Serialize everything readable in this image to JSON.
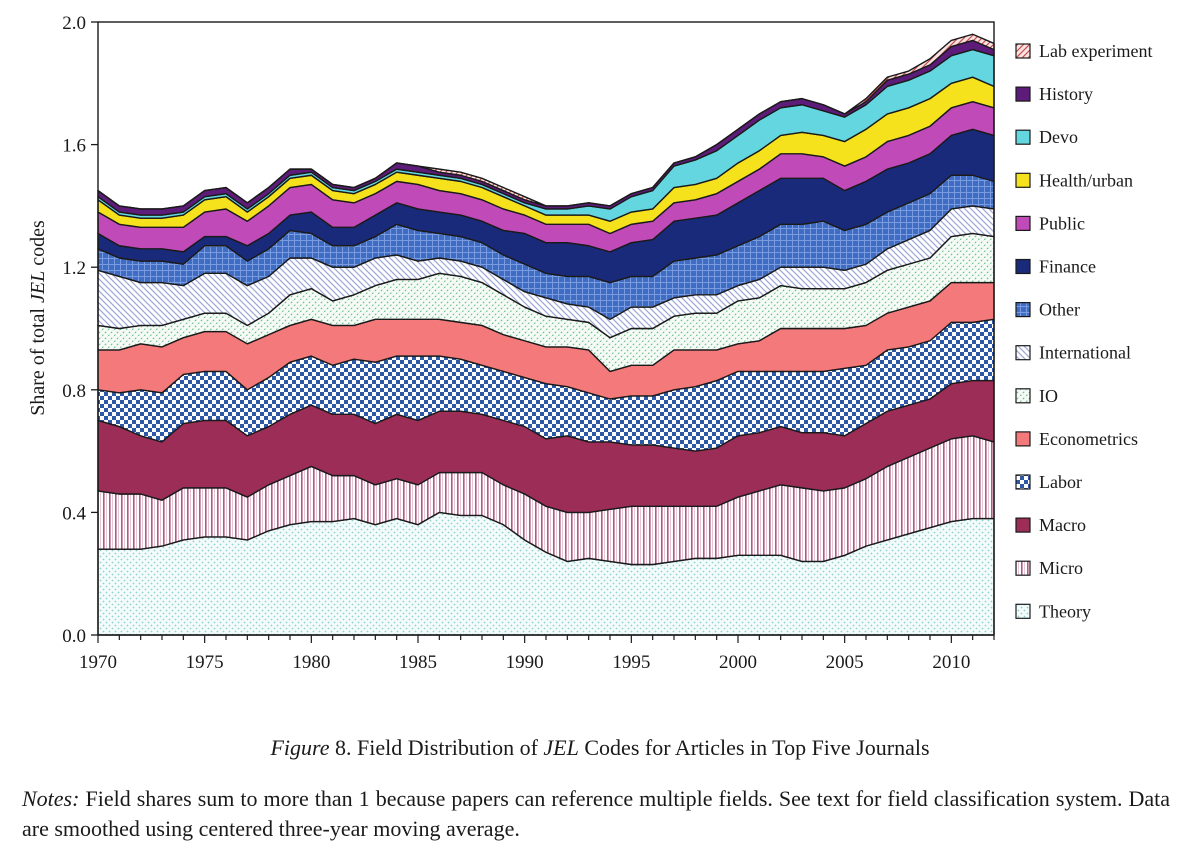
{
  "chart_data": {
    "type": "area",
    "stacked": true,
    "ylabel_prefix": "Share of total ",
    "ylabel_italic": "JEL",
    "ylabel_suffix": " codes",
    "ylim": [
      0,
      2.0
    ],
    "xlim": [
      1970,
      2012
    ],
    "yticks": [
      "0.0",
      "0.4",
      "0.8",
      "1.2",
      "1.6",
      "2.0"
    ],
    "xticks": [
      "1970",
      "1975",
      "1980",
      "1985",
      "1990",
      "1995",
      "2000",
      "2005",
      "2010"
    ],
    "legend_position": "right",
    "x": [
      1970,
      1971,
      1972,
      1973,
      1974,
      1975,
      1976,
      1977,
      1978,
      1979,
      1980,
      1981,
      1982,
      1983,
      1984,
      1985,
      1986,
      1987,
      1988,
      1989,
      1990,
      1991,
      1992,
      1993,
      1994,
      1995,
      1996,
      1997,
      1998,
      1999,
      2000,
      2001,
      2002,
      2003,
      2004,
      2005,
      2006,
      2007,
      2008,
      2009,
      2010,
      2011,
      2012
    ],
    "series": [
      {
        "name": "Theory",
        "color": "#d6f0f0",
        "pattern": "dots",
        "values": [
          0.28,
          0.28,
          0.28,
          0.29,
          0.31,
          0.32,
          0.32,
          0.31,
          0.34,
          0.36,
          0.37,
          0.37,
          0.38,
          0.36,
          0.38,
          0.36,
          0.4,
          0.39,
          0.39,
          0.36,
          0.31,
          0.27,
          0.24,
          0.25,
          0.24,
          0.23,
          0.23,
          0.24,
          0.25,
          0.25,
          0.26,
          0.26,
          0.26,
          0.24,
          0.24,
          0.26,
          0.29,
          0.31,
          0.33,
          0.35,
          0.37,
          0.38,
          0.38
        ]
      },
      {
        "name": "Micro",
        "color": "#d7a6bb",
        "pattern": "vlines",
        "values": [
          0.19,
          0.18,
          0.18,
          0.15,
          0.17,
          0.16,
          0.16,
          0.14,
          0.15,
          0.16,
          0.18,
          0.15,
          0.14,
          0.13,
          0.13,
          0.13,
          0.13,
          0.14,
          0.14,
          0.13,
          0.15,
          0.15,
          0.16,
          0.15,
          0.17,
          0.19,
          0.19,
          0.18,
          0.17,
          0.17,
          0.19,
          0.21,
          0.23,
          0.24,
          0.23,
          0.22,
          0.22,
          0.24,
          0.25,
          0.26,
          0.27,
          0.27,
          0.25
        ]
      },
      {
        "name": "Macro",
        "color": "#9b2d57",
        "pattern": "solid",
        "values": [
          0.23,
          0.22,
          0.19,
          0.19,
          0.21,
          0.22,
          0.22,
          0.2,
          0.19,
          0.2,
          0.2,
          0.2,
          0.2,
          0.2,
          0.21,
          0.21,
          0.2,
          0.2,
          0.19,
          0.21,
          0.22,
          0.22,
          0.25,
          0.23,
          0.22,
          0.2,
          0.2,
          0.19,
          0.18,
          0.19,
          0.2,
          0.19,
          0.19,
          0.18,
          0.19,
          0.17,
          0.18,
          0.18,
          0.17,
          0.16,
          0.18,
          0.18,
          0.2
        ]
      },
      {
        "name": "Labor",
        "color": "#2d58a6",
        "pattern": "checker",
        "values": [
          0.1,
          0.11,
          0.15,
          0.16,
          0.16,
          0.16,
          0.16,
          0.15,
          0.16,
          0.17,
          0.16,
          0.16,
          0.18,
          0.2,
          0.19,
          0.21,
          0.18,
          0.17,
          0.16,
          0.16,
          0.16,
          0.18,
          0.16,
          0.16,
          0.14,
          0.16,
          0.16,
          0.19,
          0.21,
          0.22,
          0.21,
          0.2,
          0.18,
          0.2,
          0.2,
          0.22,
          0.19,
          0.2,
          0.19,
          0.19,
          0.2,
          0.19,
          0.2
        ]
      },
      {
        "name": "Econometrics",
        "color": "#f4797a",
        "pattern": "solid",
        "values": [
          0.13,
          0.14,
          0.15,
          0.15,
          0.12,
          0.13,
          0.13,
          0.15,
          0.14,
          0.12,
          0.12,
          0.13,
          0.11,
          0.14,
          0.12,
          0.12,
          0.12,
          0.12,
          0.13,
          0.12,
          0.12,
          0.12,
          0.13,
          0.14,
          0.09,
          0.1,
          0.1,
          0.13,
          0.12,
          0.1,
          0.09,
          0.1,
          0.14,
          0.14,
          0.14,
          0.13,
          0.13,
          0.12,
          0.13,
          0.13,
          0.13,
          0.13,
          0.12
        ]
      },
      {
        "name": "IO",
        "color": "#bfe2cc",
        "pattern": "dashdiag",
        "values": [
          0.08,
          0.07,
          0.06,
          0.07,
          0.06,
          0.06,
          0.06,
          0.06,
          0.07,
          0.1,
          0.1,
          0.08,
          0.1,
          0.11,
          0.13,
          0.13,
          0.15,
          0.15,
          0.14,
          0.13,
          0.11,
          0.1,
          0.09,
          0.09,
          0.11,
          0.12,
          0.12,
          0.11,
          0.12,
          0.12,
          0.14,
          0.14,
          0.14,
          0.13,
          0.13,
          0.13,
          0.14,
          0.14,
          0.14,
          0.14,
          0.15,
          0.16,
          0.15
        ]
      },
      {
        "name": "International",
        "color": "#cfd6ee",
        "pattern": "diag",
        "values": [
          0.18,
          0.17,
          0.14,
          0.14,
          0.11,
          0.13,
          0.13,
          0.13,
          0.12,
          0.12,
          0.1,
          0.11,
          0.09,
          0.09,
          0.08,
          0.06,
          0.05,
          0.05,
          0.05,
          0.05,
          0.05,
          0.06,
          0.05,
          0.05,
          0.06,
          0.07,
          0.07,
          0.06,
          0.06,
          0.06,
          0.05,
          0.06,
          0.06,
          0.07,
          0.07,
          0.06,
          0.06,
          0.07,
          0.08,
          0.09,
          0.09,
          0.09,
          0.09
        ]
      },
      {
        "name": "Other",
        "color": "#3f6dc4",
        "pattern": "grid",
        "values": [
          0.07,
          0.06,
          0.07,
          0.07,
          0.07,
          0.09,
          0.09,
          0.08,
          0.09,
          0.09,
          0.08,
          0.07,
          0.07,
          0.07,
          0.1,
          0.1,
          0.08,
          0.08,
          0.08,
          0.08,
          0.09,
          0.08,
          0.09,
          0.1,
          0.12,
          0.1,
          0.1,
          0.12,
          0.12,
          0.13,
          0.13,
          0.14,
          0.14,
          0.14,
          0.15,
          0.13,
          0.13,
          0.12,
          0.12,
          0.12,
          0.11,
          0.1,
          0.09
        ]
      },
      {
        "name": "Finance",
        "color": "#1a2a7a",
        "pattern": "solid",
        "values": [
          0.05,
          0.04,
          0.04,
          0.04,
          0.04,
          0.03,
          0.03,
          0.05,
          0.05,
          0.05,
          0.07,
          0.06,
          0.06,
          0.07,
          0.07,
          0.07,
          0.07,
          0.07,
          0.07,
          0.08,
          0.1,
          0.1,
          0.11,
          0.1,
          0.1,
          0.11,
          0.12,
          0.13,
          0.13,
          0.13,
          0.14,
          0.15,
          0.15,
          0.15,
          0.14,
          0.13,
          0.14,
          0.14,
          0.13,
          0.13,
          0.13,
          0.15,
          0.15
        ]
      },
      {
        "name": "Public",
        "color": "#c04ab8",
        "pattern": "solid",
        "values": [
          0.07,
          0.07,
          0.07,
          0.07,
          0.08,
          0.08,
          0.09,
          0.08,
          0.09,
          0.09,
          0.09,
          0.09,
          0.08,
          0.07,
          0.07,
          0.08,
          0.07,
          0.07,
          0.07,
          0.07,
          0.06,
          0.06,
          0.06,
          0.07,
          0.06,
          0.06,
          0.06,
          0.06,
          0.06,
          0.07,
          0.07,
          0.07,
          0.08,
          0.08,
          0.07,
          0.08,
          0.08,
          0.09,
          0.09,
          0.09,
          0.09,
          0.09,
          0.09
        ]
      },
      {
        "name": "Health/urban",
        "color": "#f6e21c",
        "pattern": "solid",
        "values": [
          0.04,
          0.03,
          0.03,
          0.03,
          0.04,
          0.04,
          0.04,
          0.03,
          0.03,
          0.03,
          0.03,
          0.03,
          0.03,
          0.03,
          0.03,
          0.03,
          0.04,
          0.04,
          0.04,
          0.04,
          0.03,
          0.03,
          0.03,
          0.03,
          0.04,
          0.04,
          0.04,
          0.05,
          0.05,
          0.05,
          0.06,
          0.06,
          0.06,
          0.07,
          0.07,
          0.08,
          0.09,
          0.09,
          0.09,
          0.09,
          0.08,
          0.08,
          0.07
        ]
      },
      {
        "name": "Devo",
        "color": "#63d6e0",
        "pattern": "solid",
        "values": [
          0.01,
          0.01,
          0.01,
          0.01,
          0.01,
          0.01,
          0.01,
          0.01,
          0.01,
          0.01,
          0.01,
          0.01,
          0.01,
          0.01,
          0.01,
          0.01,
          0.01,
          0.01,
          0.01,
          0.01,
          0.01,
          0.02,
          0.02,
          0.03,
          0.04,
          0.05,
          0.06,
          0.07,
          0.08,
          0.09,
          0.09,
          0.1,
          0.09,
          0.09,
          0.08,
          0.08,
          0.08,
          0.09,
          0.09,
          0.09,
          0.09,
          0.09,
          0.1
        ]
      },
      {
        "name": "History",
        "color": "#5e1c7a",
        "pattern": "solid",
        "values": [
          0.02,
          0.02,
          0.02,
          0.02,
          0.02,
          0.02,
          0.02,
          0.02,
          0.02,
          0.02,
          0.01,
          0.01,
          0.01,
          0.01,
          0.02,
          0.02,
          0.01,
          0.01,
          0.01,
          0.01,
          0.01,
          0.01,
          0.01,
          0.01,
          0.01,
          0.01,
          0.01,
          0.01,
          0.01,
          0.02,
          0.02,
          0.02,
          0.02,
          0.02,
          0.02,
          0.01,
          0.01,
          0.02,
          0.02,
          0.02,
          0.03,
          0.03,
          0.02
        ]
      },
      {
        "name": "Lab experiment",
        "color": "#f1b1b1",
        "pattern": "diagdark",
        "values": [
          0.0,
          0.0,
          0.0,
          0.0,
          0.0,
          0.0,
          0.0,
          0.0,
          0.0,
          0.0,
          0.0,
          0.0,
          0.0,
          0.0,
          0.0,
          0.0,
          0.01,
          0.01,
          0.01,
          0.01,
          0.01,
          0.0,
          0.0,
          0.0,
          0.0,
          0.0,
          0.0,
          0.0,
          0.0,
          0.0,
          0.0,
          0.0,
          0.0,
          0.0,
          0.0,
          0.0,
          0.01,
          0.01,
          0.01,
          0.02,
          0.02,
          0.02,
          0.02
        ]
      }
    ]
  },
  "caption": {
    "figure_word": "Figure",
    "text_before_italic": " 8. Field Distribution of ",
    "italic": "JEL",
    "text_after_italic": " Codes for Articles in Top Five Journals"
  },
  "notes": {
    "label": "Notes:",
    "text": " Field shares sum to more than 1 because papers can reference multiple fields. See text for field classification system. Data are smoothed using centered three-year moving average."
  }
}
